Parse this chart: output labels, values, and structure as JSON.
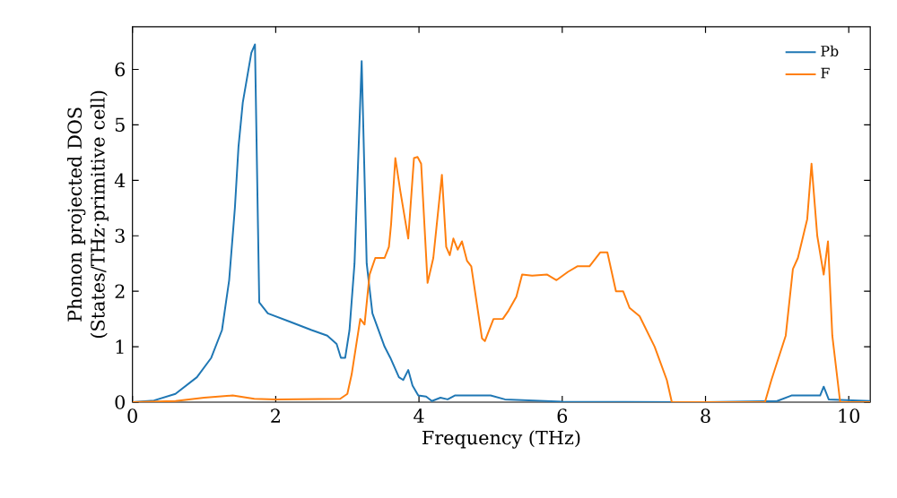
{
  "chart_data": {
    "type": "line",
    "xlabel": "Frequency (THz)",
    "ylabel": "Phonon projected DOS (States/THz·primitive cell)",
    "xlim": [
      0,
      10.3
    ],
    "ylim": [
      0,
      6.77
    ],
    "xticks": [
      0,
      2,
      4,
      6,
      8,
      10
    ],
    "yticks": [
      0,
      1,
      2,
      3,
      4,
      5,
      6
    ],
    "legend": "top right",
    "series": [
      {
        "name": "Pb",
        "color": "#1f77b4",
        "x": [
          0,
          0.3,
          0.6,
          0.9,
          1.1,
          1.25,
          1.35,
          1.43,
          1.48,
          1.54,
          1.66,
          1.71,
          1.77,
          1.89,
          2.2,
          2.5,
          2.72,
          2.85,
          2.91,
          2.97,
          3.03,
          3.1,
          3.2,
          3.27,
          3.35,
          3.52,
          3.6,
          3.72,
          3.78,
          3.85,
          3.91,
          3.99,
          4.1,
          4.18,
          4.3,
          4.4,
          4.5,
          5.0,
          5.2,
          6.0,
          8.0,
          9.0,
          9.2,
          9.6,
          9.65,
          9.72,
          10.3
        ],
        "values": [
          0,
          0.03,
          0.15,
          0.45,
          0.8,
          1.3,
          2.2,
          3.5,
          4.6,
          5.4,
          6.3,
          6.45,
          1.8,
          1.6,
          1.45,
          1.3,
          1.2,
          1.05,
          0.8,
          0.8,
          1.3,
          2.5,
          6.15,
          2.5,
          1.6,
          1.0,
          0.8,
          0.45,
          0.4,
          0.58,
          0.3,
          0.12,
          0.1,
          0.02,
          0.08,
          0.05,
          0.12,
          0.12,
          0.05,
          0.01,
          0,
          0.02,
          0.12,
          0.12,
          0.28,
          0.05,
          0.02
        ]
      },
      {
        "name": "F",
        "color": "#ff7f0e",
        "x": [
          0,
          0.6,
          1.0,
          1.4,
          1.7,
          2.0,
          2.9,
          3.0,
          3.06,
          3.18,
          3.24,
          3.31,
          3.39,
          3.52,
          3.58,
          3.61,
          3.67,
          3.74,
          3.85,
          3.93,
          3.98,
          4.03,
          4.12,
          4.2,
          4.32,
          4.38,
          4.43,
          4.48,
          4.54,
          4.6,
          4.67,
          4.73,
          4.88,
          4.92,
          5.04,
          5.17,
          5.25,
          5.36,
          5.44,
          5.58,
          5.79,
          5.92,
          6.08,
          6.21,
          6.38,
          6.53,
          6.63,
          6.75,
          6.85,
          6.94,
          7.08,
          7.29,
          7.46,
          7.53,
          8.83,
          8.92,
          9.12,
          9.22,
          9.29,
          9.42,
          9.48,
          9.56,
          9.65,
          9.71,
          9.77,
          9.88,
          10.3
        ],
        "values": [
          0,
          0.02,
          0.08,
          0.12,
          0.06,
          0.05,
          0.06,
          0.15,
          0.5,
          1.5,
          1.4,
          2.3,
          2.6,
          2.6,
          2.8,
          3.2,
          4.4,
          3.8,
          2.95,
          4.4,
          4.42,
          4.3,
          2.15,
          2.6,
          4.1,
          2.8,
          2.65,
          2.95,
          2.75,
          2.9,
          2.55,
          2.45,
          1.15,
          1.1,
          1.5,
          1.5,
          1.65,
          1.9,
          2.3,
          2.28,
          2.3,
          2.2,
          2.35,
          2.45,
          2.45,
          2.7,
          2.7,
          2.0,
          2.0,
          1.7,
          1.55,
          1.0,
          0.4,
          0,
          0,
          0.4,
          1.2,
          2.4,
          2.6,
          3.3,
          4.3,
          3.0,
          2.3,
          2.9,
          1.2,
          0,
          0
        ]
      }
    ]
  }
}
